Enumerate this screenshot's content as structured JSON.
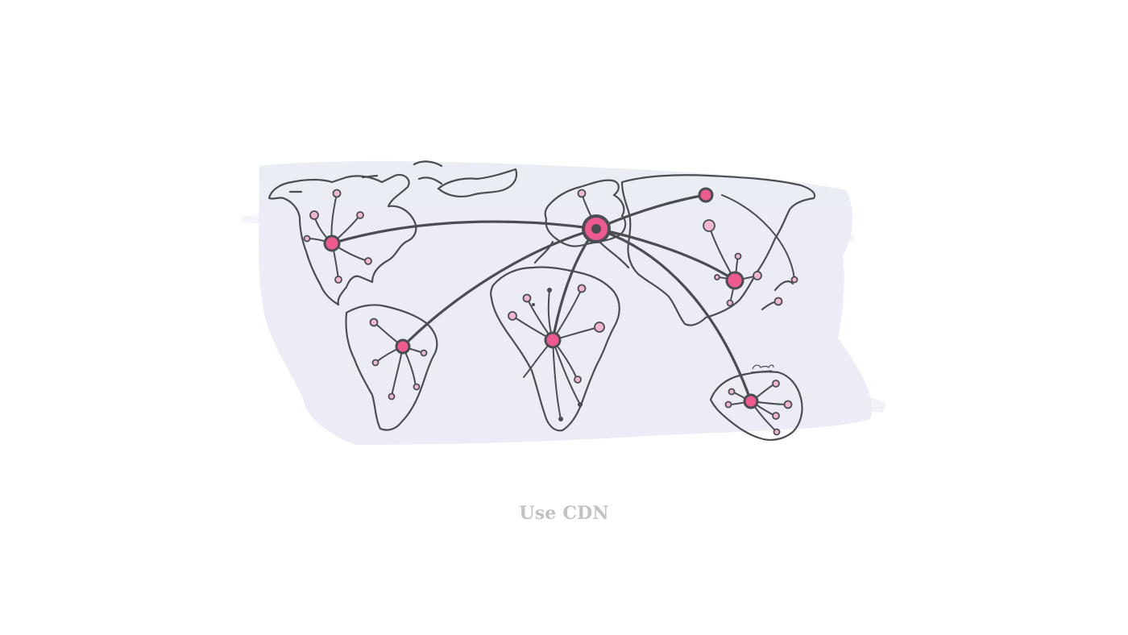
{
  "caption": "Use CDN",
  "colors": {
    "hub": "#ee5a8f",
    "edge_node": "#f3b6cf",
    "line": "#4a4d52",
    "wash": "#e9ebf4",
    "caption": "#c2c2c2"
  },
  "icons": [
    "world-map-illustration",
    "cdn-origin-server-icon",
    "cdn-hub-icon",
    "cdn-edge-node-icon"
  ]
}
